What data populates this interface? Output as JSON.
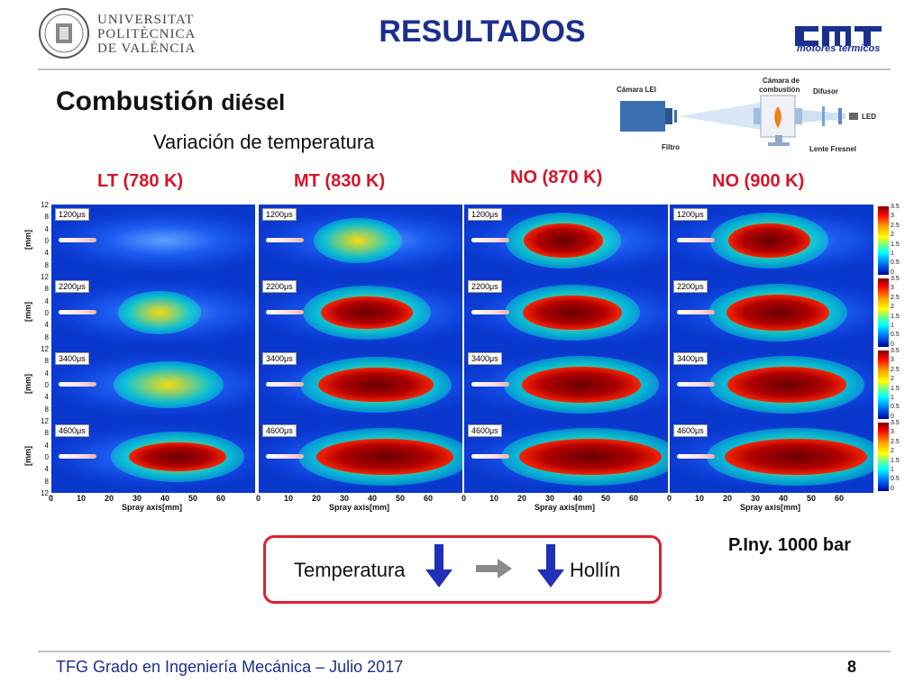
{
  "header": {
    "university_lines": [
      "UNIVERSITAT",
      "POLITÈCNICA",
      "DE VALÈNCIA"
    ],
    "title": "RESULTADOS",
    "partner_logo_text": "motores térmicos"
  },
  "section": {
    "heading": "Combustión",
    "heading_small": "diésel",
    "subheading": "Variación de temperatura"
  },
  "schematic": {
    "labels": {
      "camera": "Cámara LEI",
      "chamber_l1": "Cámara de",
      "chamber_l2": "combustión",
      "diffuser": "Difusor",
      "led": "LED",
      "filter": "Filtro",
      "lens": "Lente Fresnel"
    }
  },
  "conditions": [
    "LT (780 K)",
    "MT (830 K)",
    "NO (870 K)",
    "NO (900 K)"
  ],
  "times": [
    "1200μs",
    "2200μs",
    "3400μs",
    "4600μs"
  ],
  "y_axis_label": "[mm]",
  "y_ticks": [
    "12",
    "8",
    "4",
    "0",
    "4",
    "8",
    "12"
  ],
  "x_ticks": [
    "0",
    "10",
    "20",
    "30",
    "40",
    "50",
    "60"
  ],
  "x_axis_label": "Spray axis[mm]",
  "colorbar_ticks": [
    "3.5",
    "3",
    "2.5",
    "2",
    "1.5",
    "1",
    "0.5",
    "0"
  ],
  "injection_pressure": "P.Iny. 1000 bar",
  "summary": {
    "left_word": "Temperatura",
    "right_word": "Hollín"
  },
  "footer": {
    "text": "TFG Grado en Ingeniería Mecánica – Julio 2017",
    "page": "8"
  },
  "colors": {
    "title_blue": "#1b2f8f",
    "condition_red": "#d6152a",
    "box_red": "#e0212c",
    "arrow_blue": "#2030b8"
  },
  "soot_levels": [
    [
      0.0,
      0.3,
      0.8,
      0.85
    ],
    [
      0.15,
      0.75,
      0.85,
      0.9
    ],
    [
      0.4,
      0.85,
      0.9,
      0.9
    ],
    [
      0.55,
      0.9,
      0.95,
      0.95
    ]
  ]
}
